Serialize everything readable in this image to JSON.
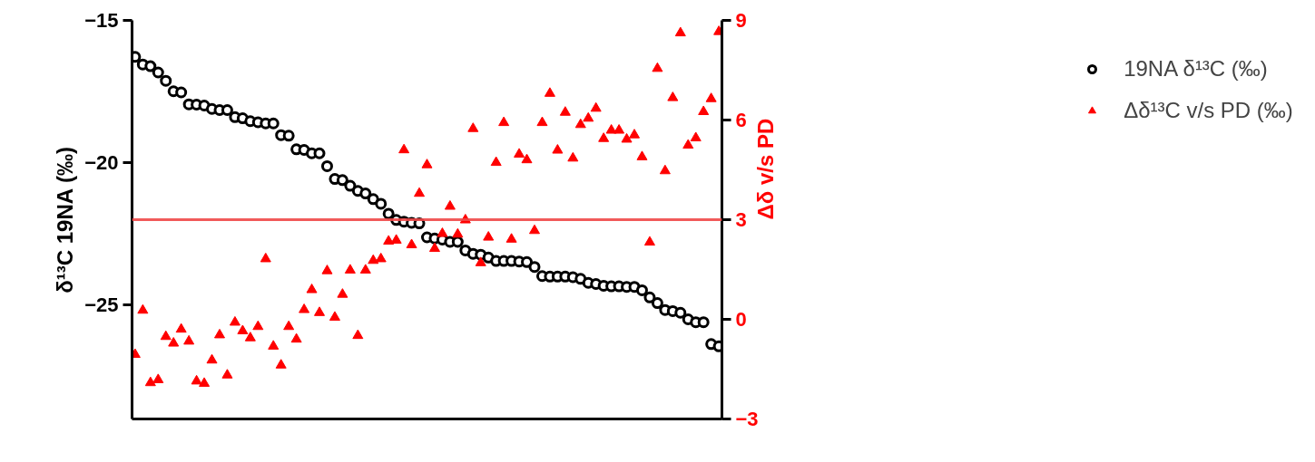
{
  "chart_data": {
    "type": "scatter",
    "categories": [
      null,
      null,
      null,
      null,
      null,
      null,
      null,
      null,
      null,
      null,
      null,
      null,
      null,
      null,
      null,
      null,
      null,
      null,
      null,
      null,
      null,
      null,
      null,
      null,
      null,
      null,
      null,
      null,
      null,
      null,
      null,
      null,
      null,
      null,
      null,
      null,
      null,
      null,
      null,
      null,
      null,
      null,
      null,
      null,
      null,
      null,
      null,
      null,
      null,
      null,
      null,
      null,
      null,
      null,
      null,
      null,
      null,
      null,
      null,
      null,
      null,
      null,
      null,
      null,
      null,
      null,
      null,
      null,
      null,
      null,
      null,
      null,
      null,
      null,
      null,
      null,
      null
    ],
    "ylabel": "δ¹³C 19NA (‰)",
    "y2label": "Δδ v/s PD",
    "ylim": [
      -29,
      -15
    ],
    "yticks": [
      -25,
      -20,
      -15
    ],
    "y2lim": [
      -3,
      9
    ],
    "y2ticks": [
      -3,
      0,
      3,
      6,
      9
    ],
    "grid": false,
    "legend": "top right",
    "ref_lines": [
      {
        "axis": "y2",
        "value": 3,
        "color": "#f04848"
      }
    ],
    "series": [
      {
        "name": "19NA δ¹³C (‰)",
        "color": "#000000",
        "marker": "circle",
        "values": [
          -16.28,
          -16.55,
          -16.61,
          -16.83,
          -17.12,
          -17.49,
          -17.53,
          -17.95,
          -17.96,
          -17.99,
          -18.11,
          -18.15,
          -18.15,
          -18.4,
          -18.44,
          -18.54,
          -18.58,
          -18.62,
          -18.62,
          -19.03,
          -19.05,
          -19.53,
          -19.55,
          -19.67,
          -19.67,
          -20.12,
          -20.57,
          -20.61,
          -20.81,
          -20.99,
          -21.08,
          -21.28,
          -21.44,
          -21.79,
          -22.01,
          -22.07,
          -22.11,
          -22.13,
          -22.62,
          -22.66,
          -22.7,
          -22.78,
          -22.78,
          -23.08,
          -23.2,
          -23.23,
          -23.33,
          -23.45,
          -23.45,
          -23.45,
          -23.47,
          -23.49,
          -23.66,
          -23.98,
          -24.0,
          -24.0,
          -24.0,
          -24.02,
          -24.08,
          -24.22,
          -24.26,
          -24.32,
          -24.34,
          -24.34,
          -24.36,
          -24.36,
          -24.48,
          -24.73,
          -24.93,
          -25.17,
          -25.21,
          -25.27,
          -25.5,
          -25.6,
          -25.6,
          -26.37,
          -26.45
        ]
      },
      {
        "name": "Δδ¹³C v/s PD (‰)",
        "color": "#ff0000",
        "marker": "triangle",
        "axis": "y2",
        "values": [
          -1.06,
          0.27,
          -1.91,
          -1.82,
          -0.52,
          -0.72,
          -0.3,
          -0.66,
          -1.86,
          -1.93,
          -1.23,
          -0.47,
          -1.68,
          -0.09,
          -0.35,
          -0.56,
          -0.22,
          1.82,
          -0.81,
          -1.38,
          -0.22,
          -0.6,
          0.29,
          0.89,
          0.2,
          1.46,
          0.06,
          0.75,
          1.48,
          -0.49,
          1.48,
          1.77,
          1.82,
          2.35,
          2.38,
          5.1,
          2.24,
          3.79,
          4.65,
          2.13,
          2.58,
          3.4,
          2.56,
          2.99,
          5.74,
          1.7,
          2.47,
          4.72,
          5.92,
          2.41,
          4.97,
          4.8,
          2.67,
          5.92,
          6.8,
          5.09,
          6.23,
          4.85,
          5.86,
          6.05,
          6.35,
          5.44,
          5.69,
          5.69,
          5.42,
          5.55,
          4.89,
          2.32,
          7.55,
          4.47,
          6.67,
          8.62,
          5.24,
          5.46,
          6.25,
          6.64,
          8.66
        ]
      }
    ]
  }
}
